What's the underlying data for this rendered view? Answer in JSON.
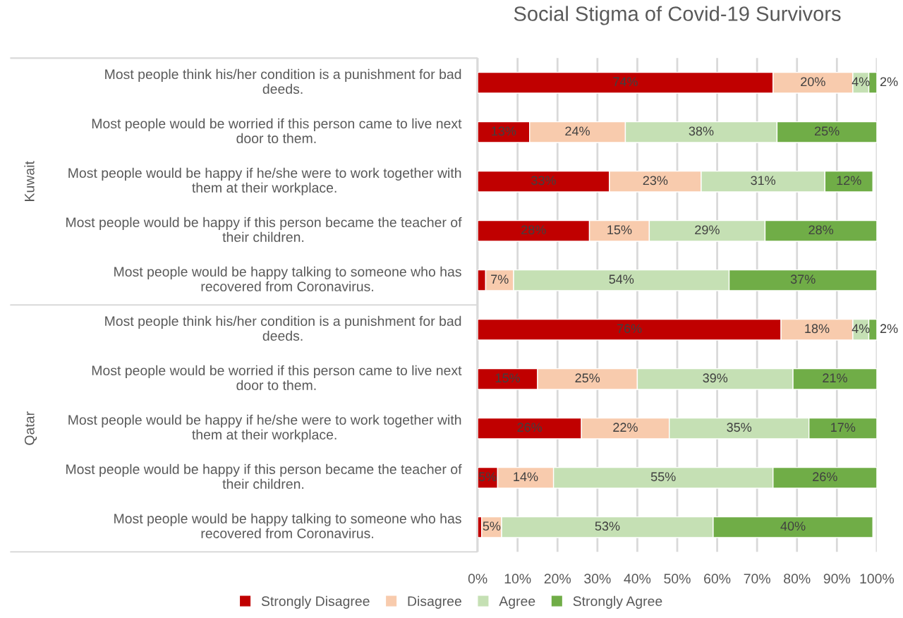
{
  "chart_data": {
    "type": "bar",
    "orientation": "horizontal",
    "stacked": true,
    "title": "Social Stigma of Covid-19 Survivors",
    "categories": [
      "Most people think his/her condition is a punishment for bad deeds.",
      "Most people would be worried if this person came to live next door to them.",
      "Most people would be happy if he/she were to work together with them at their workplace.",
      "Most people would be happy if this person became the teacher of their children.",
      "Most people would be happy talking to someone who has recovered from Coronavirus.",
      "Most people think his/her condition is a punishment for bad deeds.",
      "Most people would be worried if this person came to live next door to them.",
      "Most people would be happy if he/she were to work together with them at their workplace.",
      "Most people would be happy if this person became the teacher of their children.",
      "Most people would be happy talking to someone who has recovered from Coronavirus."
    ],
    "annotations": [
      "Kuwait",
      "Qatar"
    ],
    "series": [
      {
        "name": "Strongly Disagree",
        "color": "#c00000",
        "values": [
          74,
          13,
          33,
          28,
          2,
          76,
          15,
          26,
          5,
          1
        ],
        "value_labels": [
          "74%",
          "13%",
          "33%",
          "28%",
          null,
          "76%",
          "15%",
          "26%",
          "5%",
          null
        ]
      },
      {
        "name": "Disagree",
        "color": "#f8cbad",
        "values": [
          20,
          24,
          23,
          15,
          7,
          18,
          25,
          22,
          14,
          5
        ],
        "value_labels": [
          "20%",
          "24%",
          "23%",
          "15%",
          "7%",
          "18%",
          "25%",
          "22%",
          "14%",
          "5%"
        ]
      },
      {
        "name": "Agree",
        "color": "#c5e0b4",
        "values": [
          4,
          38,
          31,
          29,
          54,
          4,
          39,
          35,
          55,
          53
        ],
        "value_labels": [
          "4%",
          "38%",
          "31%",
          "29%",
          "54%",
          "4%",
          "39%",
          "35%",
          "55%",
          "53%"
        ]
      },
      {
        "name": "Strongly Agree",
        "color": "#70ad47",
        "values": [
          2,
          25,
          12,
          28,
          37,
          2,
          21,
          17,
          26,
          40
        ],
        "value_labels": [
          "2%",
          "25%",
          "12%",
          "28%",
          "37%",
          "2%",
          "21%",
          "17%",
          "26%",
          "40%"
        ]
      }
    ],
    "xlim": [
      0,
      100
    ],
    "xticks": [
      {
        "value": 0,
        "label": "0%"
      },
      {
        "value": 10,
        "label": "10%"
      },
      {
        "value": 20,
        "label": "20%"
      },
      {
        "value": 30,
        "label": "30%"
      },
      {
        "value": 40,
        "label": "40%"
      },
      {
        "value": 50,
        "label": "50%"
      },
      {
        "value": 60,
        "label": "60%"
      },
      {
        "value": 70,
        "label": "70%"
      },
      {
        "value": 80,
        "label": "80%"
      },
      {
        "value": 90,
        "label": "90%"
      },
      {
        "value": 100,
        "label": "100%"
      }
    ],
    "grid": "x",
    "legend": "bottom"
  }
}
